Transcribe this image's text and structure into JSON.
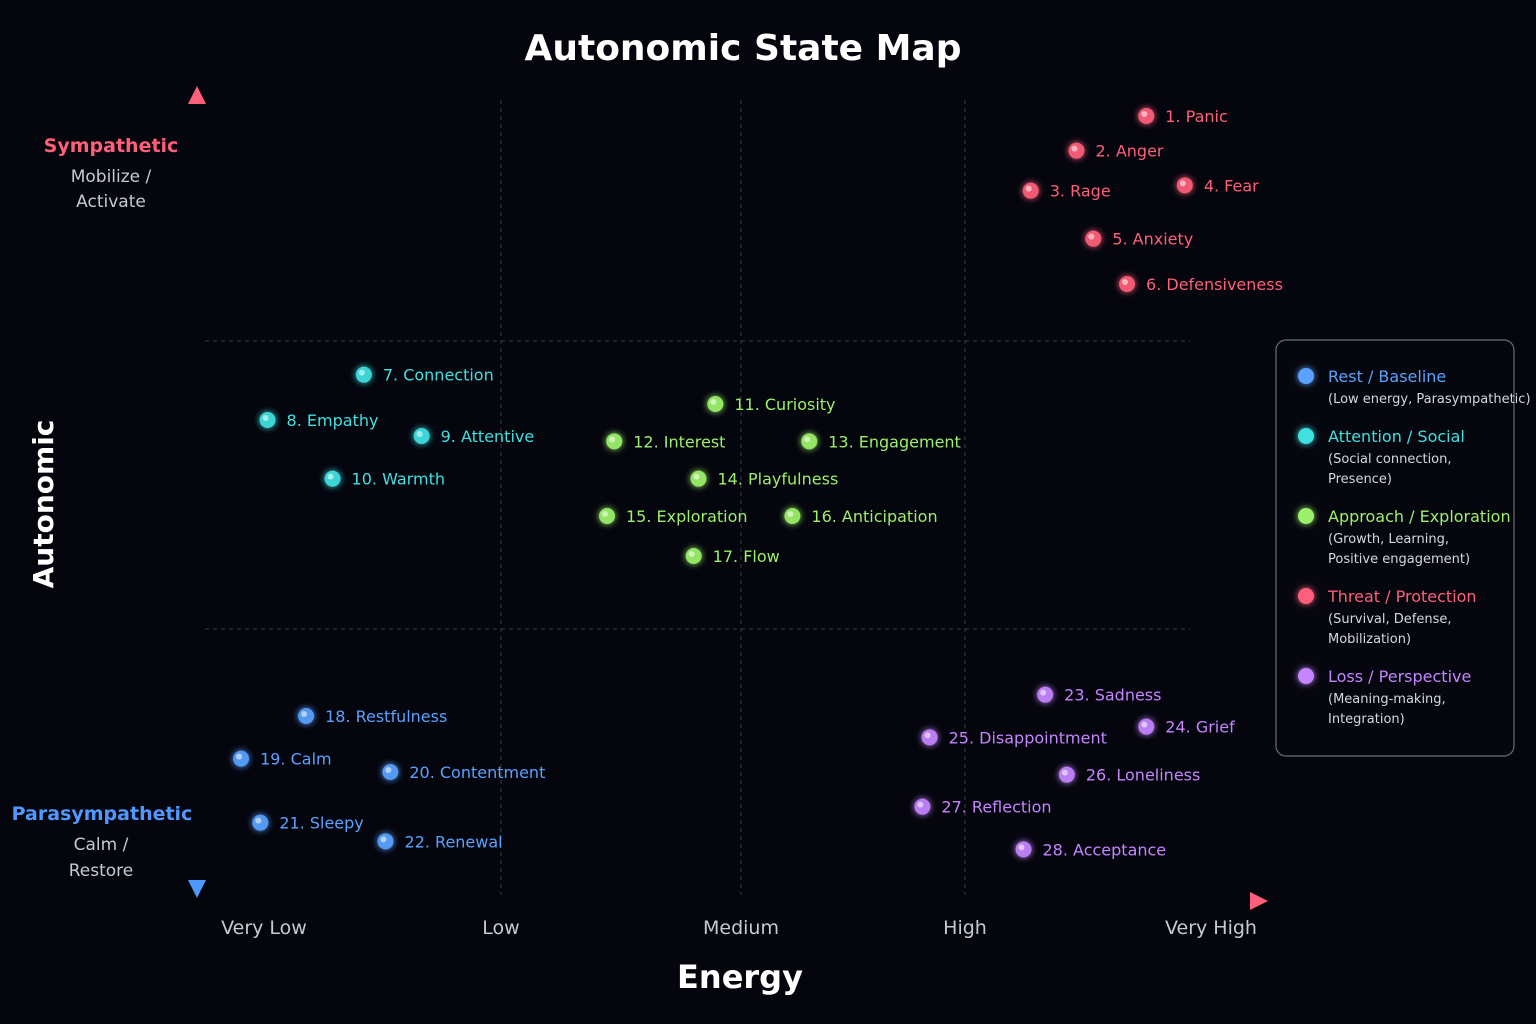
{
  "chart_data": {
    "type": "scatter",
    "title": "Autonomic State Map",
    "xlabel": "Energy",
    "ylabel": "Autonomic",
    "xticks": [
      "Very Low",
      "Low",
      "Medium",
      "High",
      "Very High"
    ],
    "xlim": [
      0,
      4
    ],
    "ylim": [
      0,
      3
    ],
    "y_poles": {
      "top": {
        "name": "Sympathetic",
        "desc": [
          "Mobilize /",
          "Activate"
        ],
        "color": "#ff5f7a"
      },
      "bottom": {
        "name": "Parasympathetic",
        "desc": [
          "Calm /",
          "Restore"
        ],
        "color": "#4f98ff"
      }
    },
    "grid": true,
    "legend_position": "right",
    "categories": [
      {
        "key": "rest",
        "name": "Rest / Baseline",
        "desc": [
          "(Low energy, Parasympathetic)"
        ],
        "color": "#5aa2ff"
      },
      {
        "key": "social",
        "name": "Attention / Social",
        "desc": [
          "(Social connection,",
          "Presence)"
        ],
        "color": "#3fe0e0"
      },
      {
        "key": "approach",
        "name": "Approach / Exploration",
        "desc": [
          "(Growth, Learning,",
          "Positive engagement)"
        ],
        "color": "#9cf06a"
      },
      {
        "key": "threat",
        "name": "Threat / Protection",
        "desc": [
          "(Survival, Defense,",
          "Mobilization)"
        ],
        "color": "#ff5f7a"
      },
      {
        "key": "loss",
        "name": "Loss / Perspective",
        "desc": [
          "(Meaning-making,",
          "Integration)"
        ],
        "color": "#c485ff"
      }
    ],
    "points": [
      {
        "label": "1. Panic",
        "cat": "threat",
        "x": 3.86,
        "y": 2.94
      },
      {
        "label": "2. Anger",
        "cat": "threat",
        "x": 3.57,
        "y": 2.81
      },
      {
        "label": "3. Rage",
        "cat": "threat",
        "x": 3.38,
        "y": 2.66
      },
      {
        "label": "4. Fear",
        "cat": "threat",
        "x": 4.02,
        "y": 2.68
      },
      {
        "label": "5. Anxiety",
        "cat": "threat",
        "x": 3.64,
        "y": 2.48
      },
      {
        "label": "6. Defensiveness",
        "cat": "threat",
        "x": 3.78,
        "y": 2.31
      },
      {
        "label": "7. Connection",
        "cat": "social",
        "x": 0.61,
        "y": 1.97
      },
      {
        "label": "8. Empathy",
        "cat": "social",
        "x": 0.21,
        "y": 1.8
      },
      {
        "label": "9. Attentive",
        "cat": "social",
        "x": 0.85,
        "y": 1.74
      },
      {
        "label": "10. Warmth",
        "cat": "social",
        "x": 0.48,
        "y": 1.58
      },
      {
        "label": "11. Curiosity",
        "cat": "approach",
        "x": 2.07,
        "y": 1.86
      },
      {
        "label": "12. Interest",
        "cat": "approach",
        "x": 1.65,
        "y": 1.72
      },
      {
        "label": "13. Engagement",
        "cat": "approach",
        "x": 2.46,
        "y": 1.72
      },
      {
        "label": "14. Playfulness",
        "cat": "approach",
        "x": 2.0,
        "y": 1.58
      },
      {
        "label": "15. Exploration",
        "cat": "approach",
        "x": 1.62,
        "y": 1.44
      },
      {
        "label": "16. Anticipation",
        "cat": "approach",
        "x": 2.39,
        "y": 1.44
      },
      {
        "label": "17. Flow",
        "cat": "approach",
        "x": 1.98,
        "y": 1.29
      },
      {
        "label": "18. Restfulness",
        "cat": "rest",
        "x": 0.37,
        "y": 0.69
      },
      {
        "label": "19. Calm",
        "cat": "rest",
        "x": 0.1,
        "y": 0.53
      },
      {
        "label": "20. Contentment",
        "cat": "rest",
        "x": 0.72,
        "y": 0.48
      },
      {
        "label": "21. Sleepy",
        "cat": "rest",
        "x": 0.18,
        "y": 0.29
      },
      {
        "label": "22. Renewal",
        "cat": "rest",
        "x": 0.7,
        "y": 0.22
      },
      {
        "label": "23. Sadness",
        "cat": "loss",
        "x": 3.44,
        "y": 0.77
      },
      {
        "label": "24. Grief",
        "cat": "loss",
        "x": 3.86,
        "y": 0.65
      },
      {
        "label": "25. Disappointment",
        "cat": "loss",
        "x": 2.96,
        "y": 0.61
      },
      {
        "label": "26. Loneliness",
        "cat": "loss",
        "x": 3.53,
        "y": 0.47
      },
      {
        "label": "27. Reflection",
        "cat": "loss",
        "x": 2.93,
        "y": 0.35
      },
      {
        "label": "28. Acceptance",
        "cat": "loss",
        "x": 3.35,
        "y": 0.19
      }
    ]
  }
}
